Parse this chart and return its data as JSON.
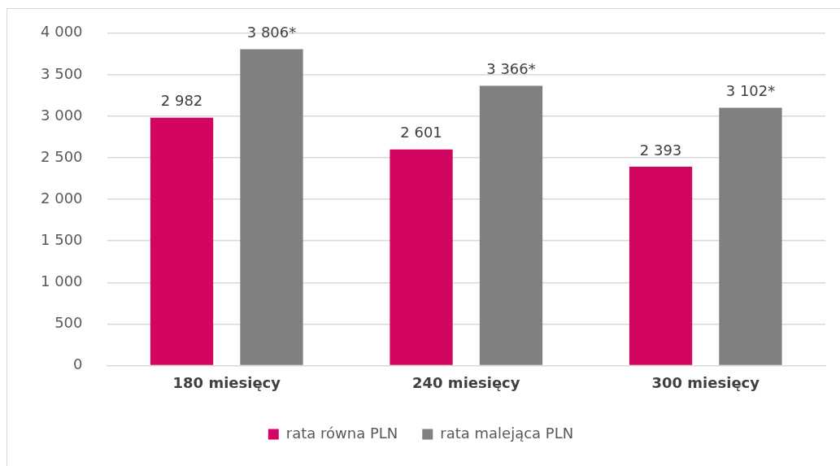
{
  "chart_data": {
    "type": "bar",
    "categories": [
      "180 miesięcy",
      "240 miesięcy",
      "300 miesięcy"
    ],
    "series": [
      {
        "name": "rata równa PLN",
        "color": "#d20660",
        "values": [
          2982,
          2601,
          2393
        ],
        "value_labels": [
          "2 982",
          "2 601",
          "2 393"
        ]
      },
      {
        "name": "rata malejąca PLN",
        "color": "#808080",
        "values": [
          3806,
          3366,
          3102
        ],
        "value_labels": [
          "3 806*",
          "3 366*",
          "3 102*"
        ]
      }
    ],
    "ylim": [
      0,
      4000
    ],
    "yticks": [
      0,
      500,
      {
        "value": 1000,
        "label": "1 000"
      },
      {
        "value": 1500,
        "label": "1 500"
      },
      {
        "value": 2000,
        "label": "2 000"
      },
      {
        "value": 2500,
        "label": "2 500"
      },
      {
        "value": 3000,
        "label": "3 000"
      },
      {
        "value": 3500,
        "label": "3 500"
      },
      {
        "value": 4000,
        "label": "4 000"
      }
    ],
    "grid": "y",
    "legend": "bottom"
  }
}
